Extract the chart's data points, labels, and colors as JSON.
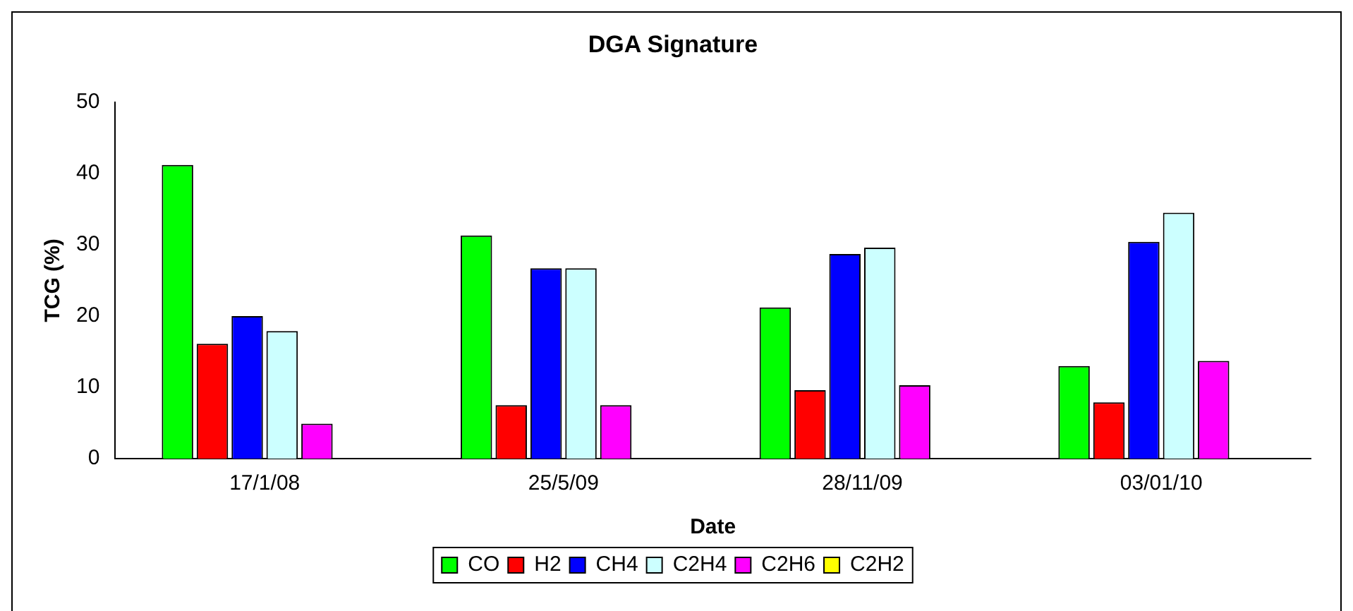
{
  "chart_data": {
    "type": "bar",
    "title": "DGA Signature",
    "xlabel": "Date",
    "ylabel": "TCG (%)",
    "categories": [
      "17/1/08",
      "25/5/09",
      "28/11/09",
      "03/01/10"
    ],
    "series": [
      {
        "name": "CO",
        "color": "#00ff00",
        "values": [
          41.2,
          31.3,
          21.2,
          13.0
        ]
      },
      {
        "name": "H2",
        "color": "#ff0000",
        "values": [
          16.1,
          7.5,
          9.6,
          7.9
        ]
      },
      {
        "name": "CH4",
        "color": "#0000ff",
        "values": [
          20.0,
          26.7,
          28.7,
          30.4
        ]
      },
      {
        "name": "C2H4",
        "color": "#ccffff",
        "values": [
          17.9,
          26.7,
          29.6,
          34.5
        ]
      },
      {
        "name": "C2H6",
        "color": "#ff00ff",
        "values": [
          4.9,
          7.5,
          10.3,
          13.7
        ]
      },
      {
        "name": "C2H2",
        "color": "#ffff00",
        "values": [
          0,
          0,
          0,
          0
        ]
      }
    ],
    "ylim": [
      0,
      50
    ],
    "yticks": [
      0,
      10,
      20,
      30,
      40,
      50
    ],
    "grid": false,
    "legend": "bottom"
  }
}
